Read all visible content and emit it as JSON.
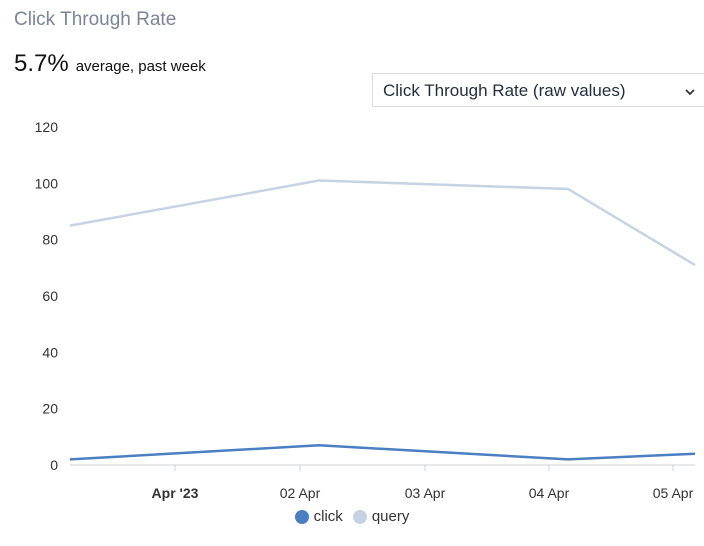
{
  "header": {
    "title": "Click Through Rate",
    "metric_value": "5.7%",
    "metric_caption": "average, past week"
  },
  "selector": {
    "label": "Click Through Rate (raw values)",
    "icon": "chevron-down-icon"
  },
  "colors": {
    "click": "#4a7fc1",
    "query": "#c5d3e3"
  },
  "chart_data": {
    "type": "line",
    "x": [
      "2023-03-31",
      "2023-04-02",
      "2023-04-04",
      "2023-04-05"
    ],
    "series": [
      {
        "name": "click",
        "values": [
          2,
          7,
          2,
          4
        ]
      },
      {
        "name": "query",
        "values": [
          85,
          101,
          98,
          71
        ]
      }
    ],
    "x_tick_labels": [
      "Apr '23",
      "02 Apr",
      "03 Apr",
      "04 Apr",
      "05 Apr"
    ],
    "y_ticks": [
      0,
      20,
      40,
      60,
      80,
      100,
      120
    ],
    "ylim": [
      0,
      120
    ],
    "grid": false,
    "legend": "bottom-center"
  }
}
